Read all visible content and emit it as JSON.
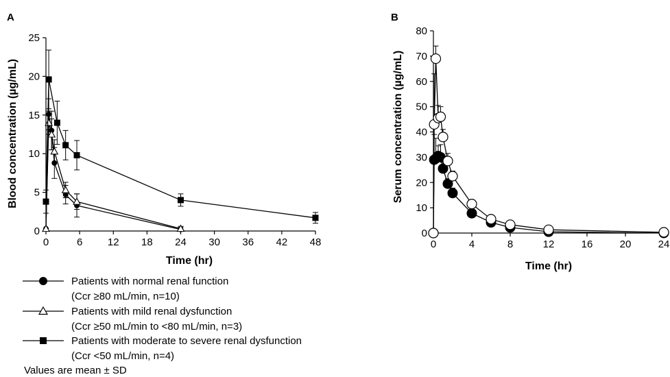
{
  "chart_data": [
    {
      "type": "line",
      "panel_label": "A",
      "xlabel": "Time (hr)",
      "ylabel": "Blood concentration (µg/mL)",
      "xlim": [
        0,
        48
      ],
      "ylim": [
        0,
        25
      ],
      "xticks": [
        0,
        6,
        12,
        18,
        24,
        30,
        36,
        42,
        48
      ],
      "yticks": [
        0,
        5,
        10,
        15,
        20,
        25
      ],
      "series": [
        {
          "name": "Patients with normal renal function",
          "name_line2": "(Ccr ≥80 mL/min, n=10)",
          "marker": "filled-circle",
          "x": [
            0,
            0.5,
            1,
            1.5,
            3.5,
            5.5,
            24
          ],
          "y": [
            0.3,
            15.1,
            13.0,
            8.8,
            4.7,
            3.3,
            0.2
          ],
          "err": [
            0,
            2.0,
            2.5,
            2.0,
            1.2,
            1.5,
            0.3
          ]
        },
        {
          "name": "Patients with mild renal dysfunction",
          "name_line2": "(Ccr ≥50 mL/min to <80 mL/min, n=3)",
          "marker": "open-triangle",
          "x": [
            0,
            0.5,
            1,
            1.5,
            3.5,
            5.5,
            24
          ],
          "y": [
            0.3,
            14.0,
            12.5,
            10.3,
            5.3,
            3.8,
            0.3
          ],
          "err": [
            0,
            1.5,
            2.0,
            1.5,
            1.0,
            1.0,
            0.3
          ]
        },
        {
          "name": "Patients with moderate to severe renal dysfunction",
          "name_line2": "(Ccr <50 mL/min, n=4)",
          "marker": "filled-square",
          "x": [
            0,
            0.5,
            2,
            3.5,
            5.5,
            24,
            48
          ],
          "y": [
            3.8,
            19.6,
            14.0,
            11.1,
            9.8,
            4.0,
            1.7
          ],
          "err": [
            1.5,
            3.8,
            2.8,
            1.9,
            1.9,
            0.8,
            0.7
          ]
        }
      ],
      "note": "Values are mean ± SD"
    },
    {
      "type": "line",
      "panel_label": "B",
      "xlabel": "Time (hr)",
      "ylabel": "Serum concentration (µg/mL)",
      "xlim": [
        0,
        24
      ],
      "ylim": [
        0,
        80
      ],
      "xticks": [
        0,
        4,
        8,
        12,
        16,
        20,
        24
      ],
      "yticks": [
        0,
        10,
        20,
        30,
        40,
        50,
        60,
        70,
        80
      ],
      "series": [
        {
          "marker": "filled-circle",
          "x": [
            0,
            0.083,
            0.25,
            0.5,
            0.75,
            1,
            1.5,
            2,
            4,
            6,
            8,
            12,
            24
          ],
          "y": [
            0,
            29.0,
            29.5,
            30.5,
            30.0,
            25.5,
            19.5,
            15.8,
            7.8,
            4.2,
            2.2,
            0.5,
            0
          ],
          "err": [
            0,
            10.0,
            8.0,
            4.0,
            5.0,
            2.5,
            2.0,
            2.0,
            1.0,
            0.5,
            0.5,
            0.2,
            0
          ]
        },
        {
          "marker": "open-circle",
          "x": [
            0,
            0.083,
            0.25,
            0.5,
            0.75,
            1,
            1.5,
            2,
            4,
            6,
            8,
            12,
            24
          ],
          "y": [
            0,
            43.0,
            69.0,
            45.5,
            46.0,
            38.0,
            28.5,
            22.5,
            11.5,
            5.5,
            3.3,
            1.3,
            0.3
          ],
          "err": [
            0,
            20.0,
            5.0,
            5.0,
            4.0,
            3.0,
            3.0,
            2.0,
            1.0,
            0.5,
            0.5,
            0.3,
            0
          ]
        }
      ]
    }
  ]
}
